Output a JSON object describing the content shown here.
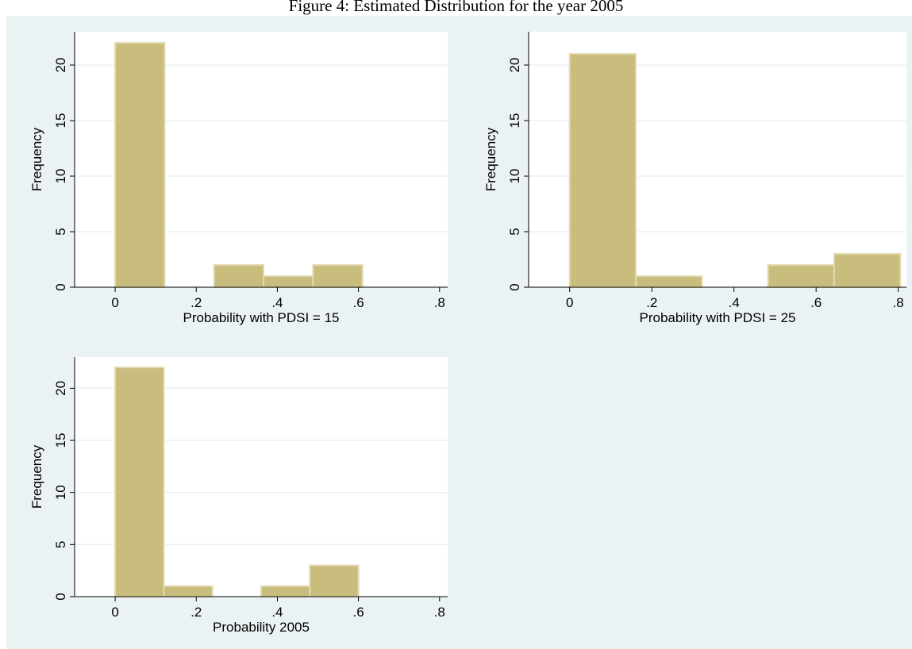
{
  "title": "Figure 4: Estimated Distribution for the year 2005",
  "colors": {
    "background": "#eaf2f3",
    "plot_area": "#ffffff",
    "bar_fill": "#c8bd7d",
    "bar_stroke": "#e2dab0",
    "grid": "#eaf2f3",
    "axis": "#000000"
  },
  "chart_data": [
    {
      "type": "bar",
      "xlabel": "Probability with PDSI = 15",
      "ylabel": "Frequency",
      "xlim": [
        -0.1,
        0.82
      ],
      "ylim": [
        0,
        23
      ],
      "xticks": [
        0,
        0.2,
        0.4,
        0.6,
        0.8
      ],
      "xtick_labels": [
        "0",
        ".2",
        ".4",
        ".6",
        ".8"
      ],
      "yticks": [
        0,
        5,
        10,
        15,
        20
      ],
      "ytick_labels": [
        "0",
        "5",
        "10",
        "15",
        "20"
      ],
      "grid": true,
      "bins": [
        {
          "start": 0,
          "end": 0.122,
          "value": 22
        },
        {
          "start": 0.244,
          "end": 0.366,
          "value": 2
        },
        {
          "start": 0.366,
          "end": 0.488,
          "value": 1
        },
        {
          "start": 0.488,
          "end": 0.61,
          "value": 2
        }
      ]
    },
    {
      "type": "bar",
      "xlabel": "Probability with PDSI = 25",
      "ylabel": "Frequency",
      "xlim": [
        -0.1,
        0.82
      ],
      "ylim": [
        0,
        23
      ],
      "xticks": [
        0,
        0.2,
        0.4,
        0.6,
        0.8
      ],
      "xtick_labels": [
        "0",
        ".2",
        ".4",
        ".6",
        ".8"
      ],
      "yticks": [
        0,
        5,
        10,
        15,
        20
      ],
      "ytick_labels": [
        "0",
        "5",
        "10",
        "15",
        "20"
      ],
      "grid": true,
      "bins": [
        {
          "start": 0,
          "end": 0.161,
          "value": 21
        },
        {
          "start": 0.161,
          "end": 0.322,
          "value": 1
        },
        {
          "start": 0.483,
          "end": 0.644,
          "value": 2
        },
        {
          "start": 0.644,
          "end": 0.805,
          "value": 3
        }
      ]
    },
    {
      "type": "bar",
      "xlabel": "Probability 2005",
      "ylabel": "Frequency",
      "xlim": [
        -0.1,
        0.82
      ],
      "ylim": [
        0,
        23
      ],
      "xticks": [
        0,
        0.2,
        0.4,
        0.6,
        0.8
      ],
      "xtick_labels": [
        "0",
        ".2",
        ".4",
        ".6",
        ".8"
      ],
      "yticks": [
        0,
        5,
        10,
        15,
        20
      ],
      "ytick_labels": [
        "0",
        "5",
        "10",
        "15",
        "20"
      ],
      "grid": true,
      "bins": [
        {
          "start": 0,
          "end": 0.12,
          "value": 22
        },
        {
          "start": 0.12,
          "end": 0.24,
          "value": 1
        },
        {
          "start": 0.36,
          "end": 0.48,
          "value": 1
        },
        {
          "start": 0.48,
          "end": 0.6,
          "value": 3
        }
      ]
    }
  ]
}
